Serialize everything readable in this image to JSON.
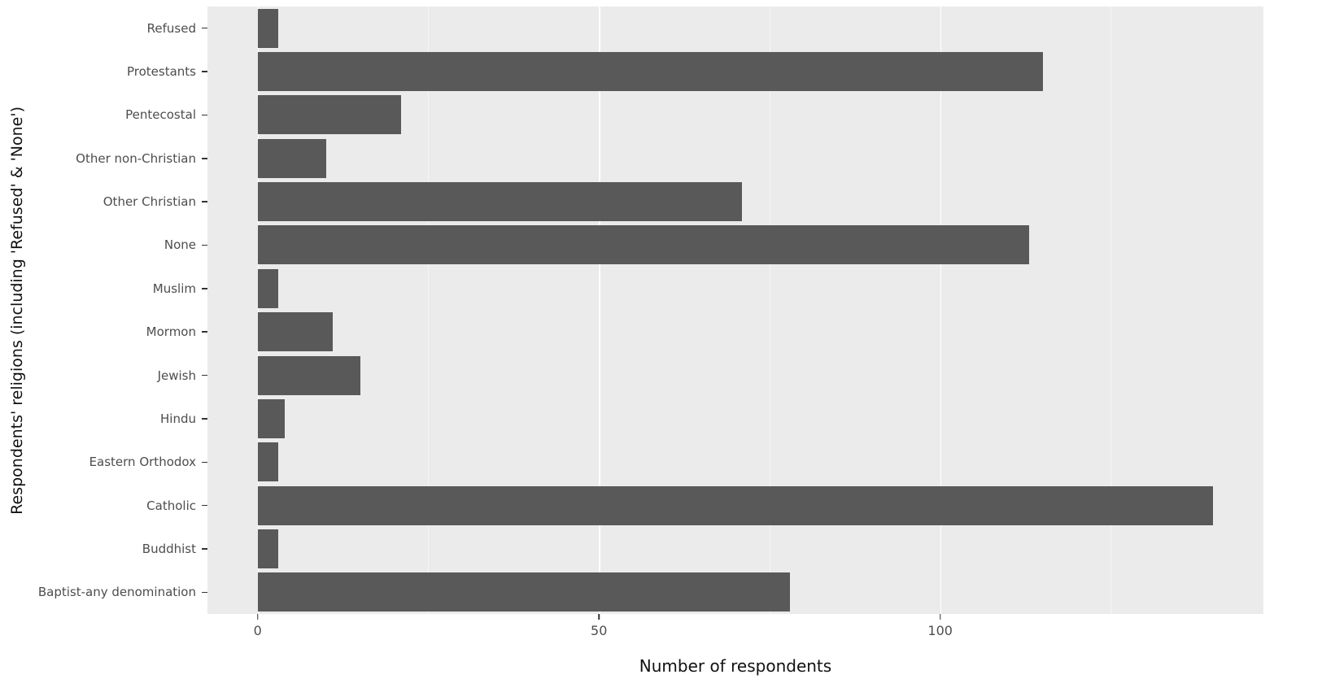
{
  "colors": {
    "panel_background": "#ebebeb",
    "bar_fill": "#595959",
    "gridline_major": "#ffffff",
    "tick_label": "#4d4d4d",
    "axis_title": "#111111"
  },
  "chart_data": {
    "type": "bar",
    "orientation": "horizontal",
    "title": "",
    "xlabel": "Number of respondents",
    "ylabel": "Respondents' religions (including 'Refused' & 'None')",
    "categories": [
      "Refused",
      "Protestants",
      "Pentecostal",
      "Other non-Christian",
      "Other Christian",
      "None",
      "Muslim",
      "Mormon",
      "Jewish",
      "Hindu",
      "Eastern Orthodox",
      "Catholic",
      "Buddhist",
      "Baptist-any denomination"
    ],
    "values": [
      3,
      115,
      21,
      10,
      71,
      113,
      3,
      11,
      15,
      4,
      3,
      140,
      3,
      78
    ],
    "xlim": [
      -7.35,
      147.35
    ],
    "x_major_ticks": [
      0,
      50,
      100
    ],
    "x_minor_ticks": [
      25,
      75,
      125
    ],
    "bar_width_fraction": 0.9,
    "grid": "major and minor vertical white gridlines on grey panel",
    "legend": "none"
  }
}
